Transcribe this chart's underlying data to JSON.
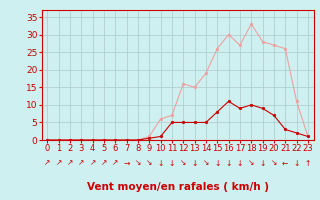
{
  "x": [
    0,
    1,
    2,
    3,
    4,
    5,
    6,
    7,
    8,
    9,
    10,
    11,
    12,
    13,
    14,
    15,
    16,
    17,
    18,
    19,
    20,
    21,
    22,
    23
  ],
  "y_mean": [
    0,
    0,
    0,
    0,
    0,
    0,
    0,
    0,
    0,
    0.5,
    1,
    5,
    5,
    5,
    5,
    8,
    11,
    9,
    10,
    9,
    7,
    3,
    2,
    1
  ],
  "y_gust": [
    0,
    0,
    0,
    0,
    0,
    0,
    0,
    0,
    0,
    1,
    6,
    7,
    16,
    15,
    19,
    26,
    30,
    27,
    33,
    28,
    27,
    26,
    11,
    1
  ],
  "wind_dir": [
    "↗",
    "↗",
    "↗",
    "↗",
    "↗",
    "↗",
    "↗",
    "→",
    "↘",
    "↘",
    "↓",
    "↓",
    "↘",
    "↓",
    "↘",
    "↓",
    "↓",
    "↓",
    "↘",
    "↓",
    "↘",
    "←",
    "↓",
    "↑"
  ],
  "xlabel": "Vent moyen/en rafales ( km/h )",
  "bg_color": "#cff0f0",
  "grid_color": "#b0c8c8",
  "mean_color": "#cc0000",
  "gust_color": "#f0a0a0",
  "axis_color": "#cc0000",
  "yticks": [
    0,
    5,
    10,
    15,
    20,
    25,
    30,
    35
  ],
  "ylim": [
    0,
    37
  ],
  "xlim": [
    -0.5,
    23.5
  ],
  "tick_fontsize": 6.5,
  "label_fontsize": 7.5
}
